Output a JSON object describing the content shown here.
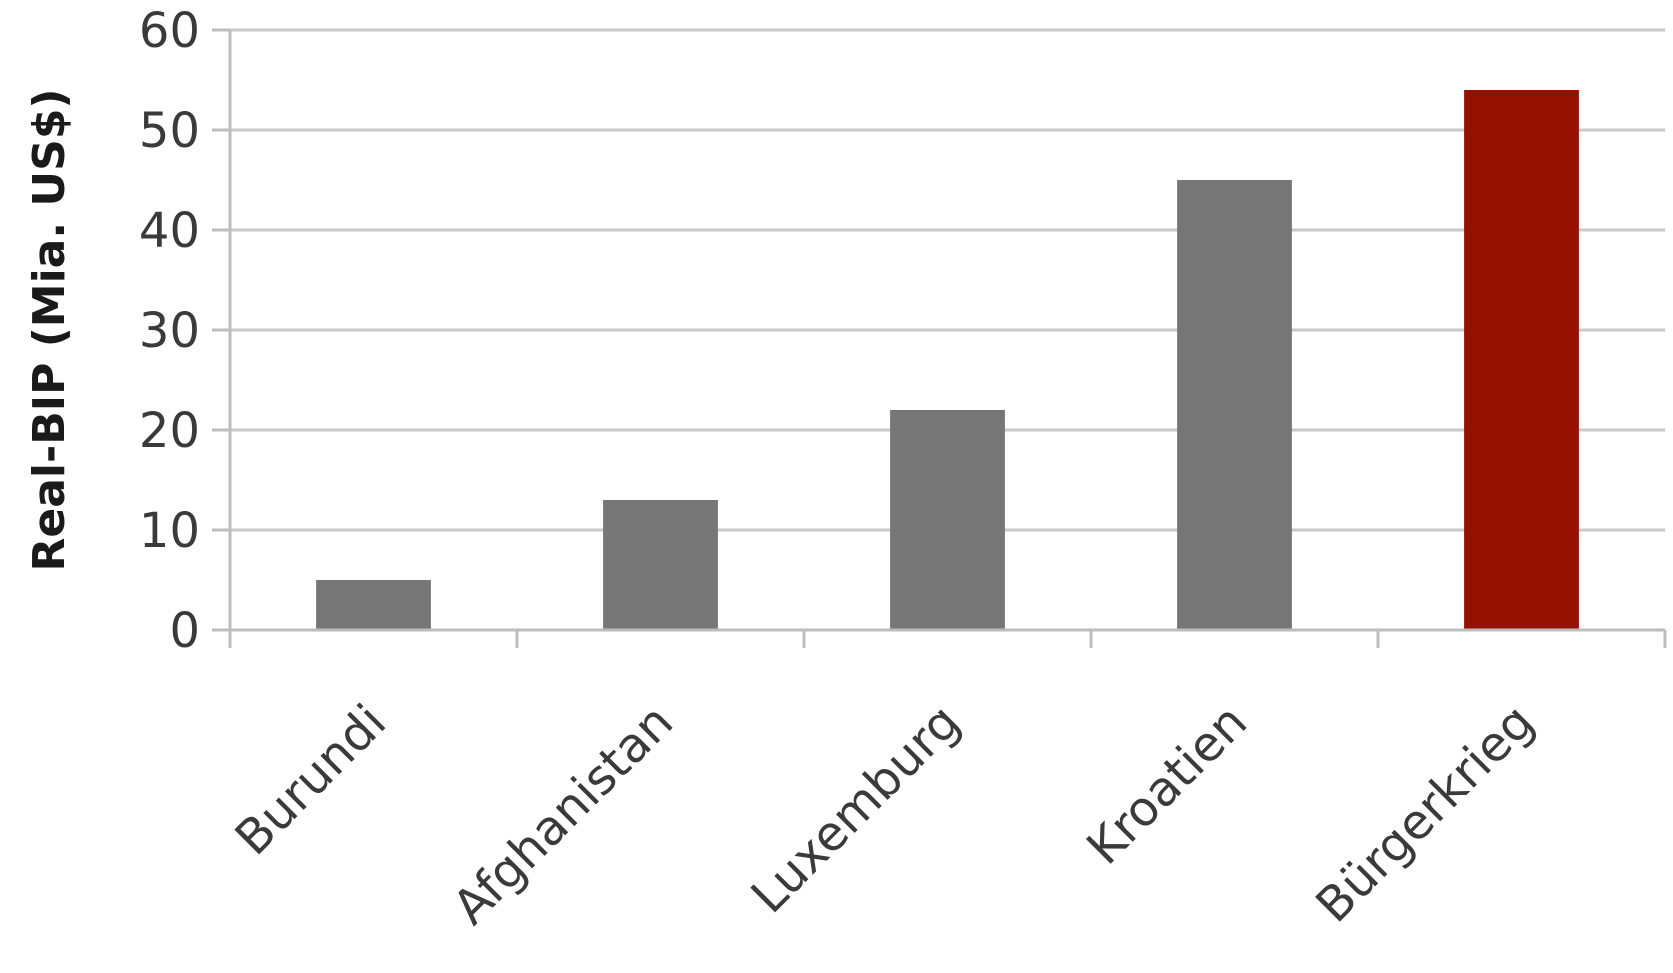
{
  "chart_data": {
    "type": "bar",
    "title": "",
    "xlabel": "",
    "ylabel": "Real-BIP (Mia. US$)",
    "categories": [
      "Burundi",
      "Afghanistan",
      "Luxemburg",
      "Kroatien",
      "Bürgerkrieg"
    ],
    "values": [
      5,
      13,
      22,
      45,
      54
    ],
    "ylim": [
      0,
      60
    ],
    "yticks": [
      "0",
      "10",
      "20",
      "30",
      "40",
      "50",
      "60"
    ],
    "grid": true,
    "legend": "none",
    "bar_colors": [
      "#767676",
      "#767676",
      "#767676",
      "#767676",
      "#941100"
    ],
    "gridline_color": "#c8c8c8",
    "axis_color": "#bdbdbd"
  }
}
